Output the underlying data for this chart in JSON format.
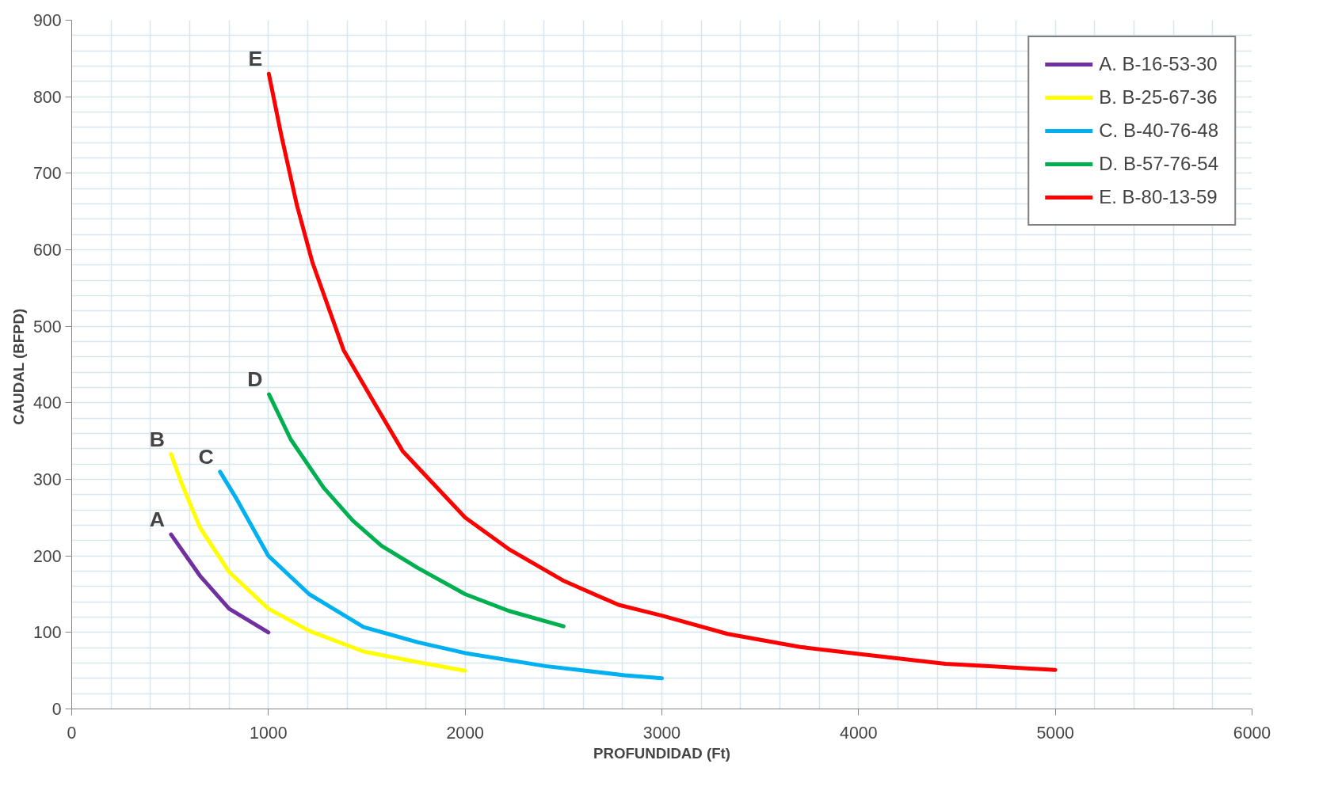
{
  "chart_data": {
    "type": "line",
    "xlabel": "PROFUNDIDAD (Ft)",
    "ylabel": "CAUDAL  (BFPD)",
    "xlim": [
      0,
      6000
    ],
    "ylim": [
      0,
      900
    ],
    "xticks": [
      0,
      1000,
      2000,
      3000,
      4000,
      5000,
      6000
    ],
    "yticks": [
      0,
      100,
      200,
      300,
      400,
      500,
      600,
      700,
      800,
      900
    ],
    "grid": true,
    "legend": "top right",
    "line_style": "solid",
    "marker": "none",
    "series": [
      {
        "name": "A. B-16-53-30",
        "color": "#7030a0",
        "x": [
          505,
          652,
          800,
          1000
        ],
        "values": [
          228,
          174,
          131,
          100
        ]
      },
      {
        "name": "B. B-25-67-36",
        "color": "#ffff00",
        "x": [
          505,
          560,
          652,
          800,
          1000,
          1207,
          1484,
          1761,
          2000
        ],
        "values": [
          333,
          294,
          237,
          179,
          131,
          102,
          75,
          61,
          50
        ]
      },
      {
        "name": "C. B-40-76-48",
        "color": "#00b0f0",
        "x": [
          754,
          837,
          1000,
          1207,
          1484,
          1761,
          2000,
          2408,
          2811,
          3000
        ],
        "values": [
          310,
          275,
          200,
          150,
          107,
          87,
          73,
          56,
          44,
          40
        ]
      },
      {
        "name": "D. B-57-76-54",
        "color": "#00b050",
        "x": [
          1003,
          1114,
          1281,
          1429,
          1576,
          1761,
          2000,
          2223,
          2500
        ],
        "values": [
          411,
          352,
          289,
          246,
          213,
          184,
          150,
          128,
          108
        ]
      },
      {
        "name": "E. B-80-13-59",
        "color": "#ff0000",
        "x": [
          1002,
          1066,
          1145,
          1223,
          1382,
          1540,
          1682,
          2000,
          2227,
          2504,
          2780,
          3000,
          3334,
          3703,
          4000,
          4441,
          5000
        ],
        "values": [
          830,
          749,
          658,
          584,
          469,
          399,
          337,
          250,
          208,
          167,
          136,
          122,
          98,
          81,
          72,
          59,
          51
        ]
      }
    ],
    "annotations": [
      {
        "text": "A",
        "x": 505,
        "y": 228
      },
      {
        "text": "B",
        "x": 505,
        "y": 333
      },
      {
        "text": "C",
        "x": 754,
        "y": 310
      },
      {
        "text": "D",
        "x": 1003,
        "y": 411
      },
      {
        "text": "E",
        "x": 1002,
        "y": 830
      }
    ]
  }
}
